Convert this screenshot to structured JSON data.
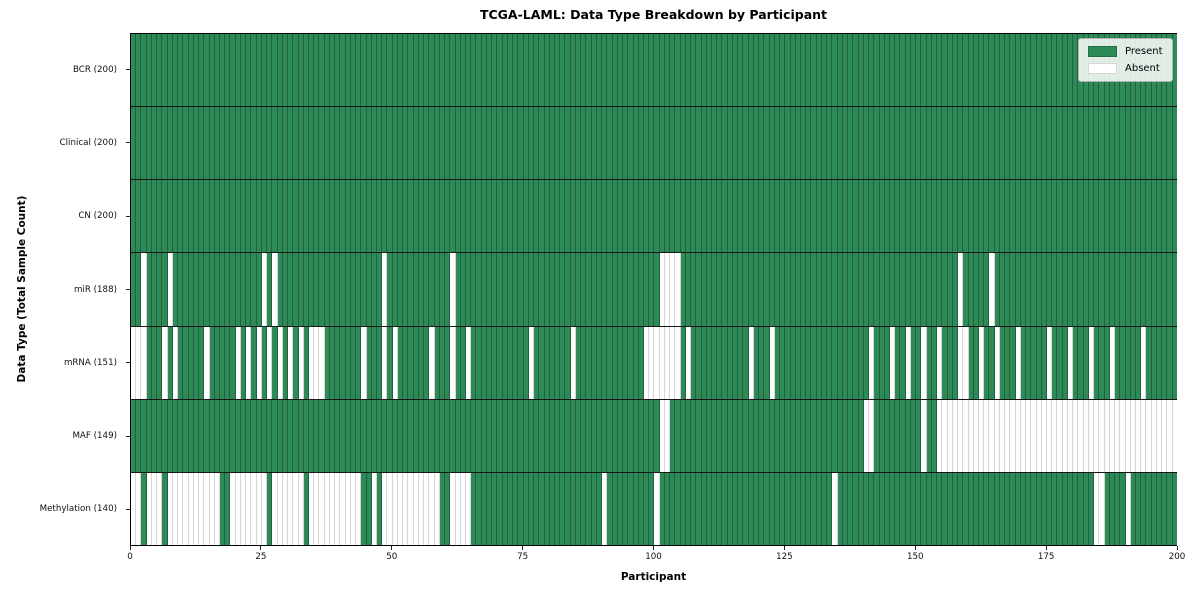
{
  "title": "TCGA-LAML: Data Type Breakdown by Participant",
  "x_axis": {
    "label": "Participant",
    "ticks": [
      0,
      25,
      50,
      75,
      100,
      125,
      150,
      175,
      200
    ],
    "range": [
      0,
      200
    ]
  },
  "y_axis": {
    "label": "Data Type (Total Sample Count)"
  },
  "legend": {
    "present_label": "Present",
    "absent_label": "Absent"
  },
  "colors": {
    "present": "#2e8b57",
    "absent": "#ffffff",
    "grid_line_on_green": "rgba(0,0,0,0.30)",
    "grid_line_on_white": "rgba(0,0,0,0.16)",
    "row_separator": "#161616"
  },
  "chart_data": {
    "type": "heatmap",
    "n_participants": 200,
    "x_ticks": [
      0,
      25,
      50,
      75,
      100,
      125,
      150,
      175,
      200
    ],
    "legend_entries": [
      "Present",
      "Absent"
    ],
    "rows": [
      {
        "name": "BCR",
        "label": "BCR (200)",
        "present_count": 200,
        "absent_participants": []
      },
      {
        "name": "Clinical",
        "label": "Clinical (200)",
        "present_count": 200,
        "absent_participants": []
      },
      {
        "name": "CN",
        "label": "CN (200)",
        "present_count": 200,
        "absent_participants": []
      },
      {
        "name": "miR",
        "label": "miR (188)",
        "present_count": 188,
        "absent_participants": [
          2,
          7,
          25,
          27,
          48,
          61,
          101,
          102,
          103,
          104,
          158,
          164
        ]
      },
      {
        "name": "mRNA",
        "label": "mRNA (151)",
        "present_count": 151,
        "absent_participants": [
          0,
          1,
          2,
          6,
          8,
          14,
          20,
          22,
          24,
          26,
          28,
          30,
          32,
          34,
          35,
          36,
          44,
          48,
          50,
          57,
          61,
          64,
          76,
          84,
          98,
          99,
          100,
          101,
          102,
          103,
          104,
          106,
          118,
          122,
          141,
          145,
          148,
          151,
          154,
          158,
          159,
          162,
          165,
          169,
          175,
          179,
          183,
          187,
          193
        ]
      },
      {
        "name": "MAF",
        "label": "MAF (149)",
        "present_count": 149,
        "absent_participants": [
          101,
          102,
          140,
          141,
          151,
          154,
          155,
          156,
          157,
          158,
          159,
          160,
          161,
          162,
          163,
          164,
          165,
          166,
          167,
          168,
          169,
          170,
          171,
          172,
          173,
          174,
          175,
          176,
          177,
          178,
          179,
          180,
          181,
          182,
          183,
          184,
          185,
          186,
          187,
          188,
          189,
          190,
          191,
          192,
          193,
          194,
          195,
          196,
          197,
          198,
          199
        ]
      },
      {
        "name": "Methylation",
        "label": "Methylation (140)",
        "present_count": 140,
        "absent_participants": [
          0,
          1,
          3,
          4,
          5,
          7,
          8,
          9,
          10,
          11,
          12,
          13,
          14,
          15,
          16,
          19,
          20,
          21,
          22,
          23,
          24,
          25,
          27,
          28,
          29,
          30,
          31,
          32,
          34,
          35,
          36,
          37,
          38,
          39,
          40,
          41,
          42,
          43,
          46,
          48,
          49,
          50,
          51,
          52,
          53,
          54,
          55,
          56,
          57,
          58,
          61,
          62,
          63,
          64,
          90,
          100,
          134,
          184,
          185,
          190
        ]
      }
    ]
  }
}
